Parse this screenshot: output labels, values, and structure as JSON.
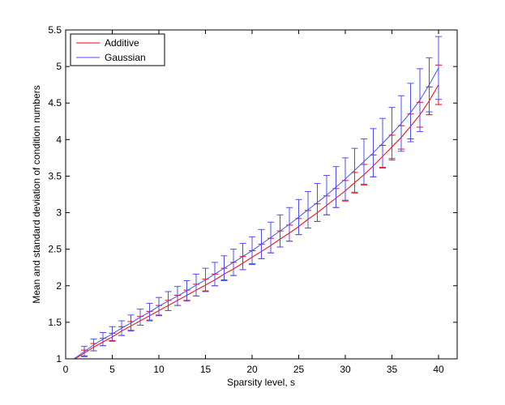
{
  "chart_data": {
    "type": "line",
    "title": "",
    "xlabel": "Sparsity level, s",
    "ylabel": "Mean and standard deviation of condition numbers",
    "xlim": [
      0,
      42
    ],
    "ylim": [
      1,
      5.5
    ],
    "xticks": [
      0,
      5,
      10,
      15,
      20,
      25,
      30,
      35,
      40
    ],
    "xtick_labels": [
      "0",
      "5",
      "10",
      "15",
      "20",
      "25",
      "30",
      "35",
      "40"
    ],
    "yticks": [
      1,
      1.5,
      2,
      2.5,
      3,
      3.5,
      4,
      4.5,
      5,
      5.5
    ],
    "ytick_labels": [
      "1",
      "1.5",
      "2",
      "2.5",
      "3",
      "3.5",
      "4",
      "4.5",
      "5",
      "5.5"
    ],
    "grid": false,
    "legend_position": "top-left",
    "x": [
      2,
      3,
      4,
      5,
      6,
      7,
      8,
      9,
      10,
      11,
      12,
      13,
      14,
      15,
      16,
      17,
      18,
      19,
      20,
      21,
      22,
      23,
      24,
      25,
      26,
      27,
      28,
      29,
      30,
      31,
      32,
      33,
      34,
      35,
      36,
      37,
      38,
      39,
      40
    ],
    "series": [
      {
        "name": "Additive",
        "color": "#ff0000",
        "mean": [
          1.08,
          1.16,
          1.23,
          1.3,
          1.38,
          1.45,
          1.52,
          1.59,
          1.66,
          1.73,
          1.8,
          1.87,
          1.94,
          2.01,
          2.08,
          2.16,
          2.23,
          2.31,
          2.39,
          2.47,
          2.55,
          2.64,
          2.72,
          2.81,
          2.91,
          3.0,
          3.1,
          3.2,
          3.3,
          3.41,
          3.52,
          3.64,
          3.77,
          3.9,
          4.03,
          4.18,
          4.34,
          4.53,
          4.75
        ],
        "std": [
          0.04,
          0.05,
          0.05,
          0.05,
          0.06,
          0.06,
          0.06,
          0.06,
          0.07,
          0.07,
          0.07,
          0.07,
          0.08,
          0.08,
          0.08,
          0.08,
          0.09,
          0.09,
          0.09,
          0.1,
          0.1,
          0.11,
          0.11,
          0.11,
          0.12,
          0.12,
          0.13,
          0.13,
          0.14,
          0.14,
          0.14,
          0.15,
          0.15,
          0.16,
          0.16,
          0.17,
          0.17,
          0.19,
          0.27
        ]
      },
      {
        "name": "Gaussian",
        "color": "#4d4dff",
        "mean": [
          1.1,
          1.19,
          1.27,
          1.34,
          1.42,
          1.49,
          1.57,
          1.64,
          1.72,
          1.79,
          1.86,
          1.93,
          2.01,
          2.08,
          2.16,
          2.24,
          2.32,
          2.4,
          2.48,
          2.57,
          2.66,
          2.75,
          2.84,
          2.94,
          3.04,
          3.14,
          3.24,
          3.35,
          3.46,
          3.58,
          3.7,
          3.82,
          3.95,
          4.08,
          4.22,
          4.37,
          4.54,
          4.75,
          4.98
        ],
        "std": [
          0.07,
          0.08,
          0.09,
          0.1,
          0.1,
          0.11,
          0.11,
          0.12,
          0.12,
          0.13,
          0.13,
          0.14,
          0.15,
          0.16,
          0.16,
          0.17,
          0.18,
          0.18,
          0.19,
          0.2,
          0.21,
          0.22,
          0.23,
          0.24,
          0.25,
          0.26,
          0.27,
          0.28,
          0.29,
          0.3,
          0.31,
          0.33,
          0.34,
          0.36,
          0.38,
          0.4,
          0.43,
          0.37,
          0.43
        ]
      }
    ]
  }
}
